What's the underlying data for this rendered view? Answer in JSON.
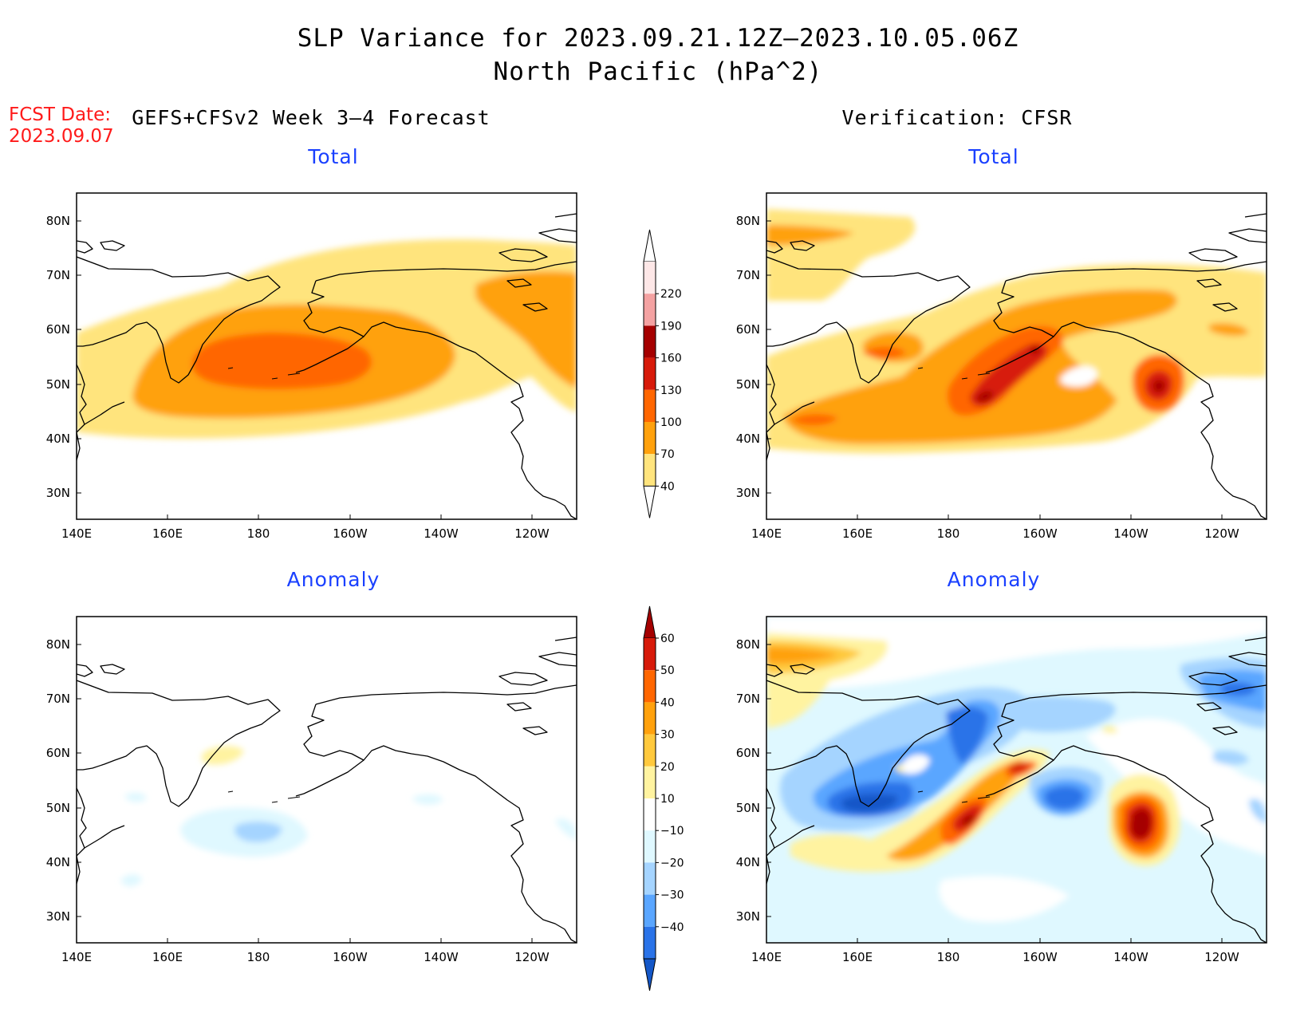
{
  "title_line1": "SLP Variance for 2023.09.21.12Z–2023.10.05.06Z",
  "title_line2": "North Pacific (hPa^2)",
  "fcst_label": "FCST Date:",
  "fcst_date": "2023.09.07",
  "left_subtitle": "GEFS+CFSv2 Week 3–4 Forecast",
  "right_subtitle": "Verification: CFSR",
  "panels": {
    "top_left": "Total",
    "top_right": "Total",
    "bottom_left": "Anomaly",
    "bottom_right": "Anomaly"
  },
  "lon_labels": [
    "140E",
    "160E",
    "180",
    "160W",
    "140W",
    "120W"
  ],
  "lat_labels": [
    "80N",
    "70N",
    "60N",
    "50N",
    "40N",
    "30N"
  ],
  "total_colorbar": {
    "labels": [
      "220",
      "190",
      "160",
      "130",
      "100",
      "70",
      "40"
    ],
    "colors": [
      "#fde7e7",
      "#f4a2a2",
      "#a50000",
      "#d71a0a",
      "#ff6600",
      "#ffa10d",
      "#ffe47d"
    ]
  },
  "anomaly_colorbar": {
    "labels": [
      "60",
      "50",
      "40",
      "30",
      "20",
      "10",
      "−10",
      "−20",
      "−30",
      "−40"
    ],
    "colors": [
      "#a50000",
      "#d71a0a",
      "#ff6600",
      "#ffa10d",
      "#ffc93d",
      "#fff3a0",
      "#ffffff",
      "#dff8ff",
      "#a5d4ff",
      "#5aa6ff",
      "#2a73e8",
      "#1457c8"
    ]
  }
}
